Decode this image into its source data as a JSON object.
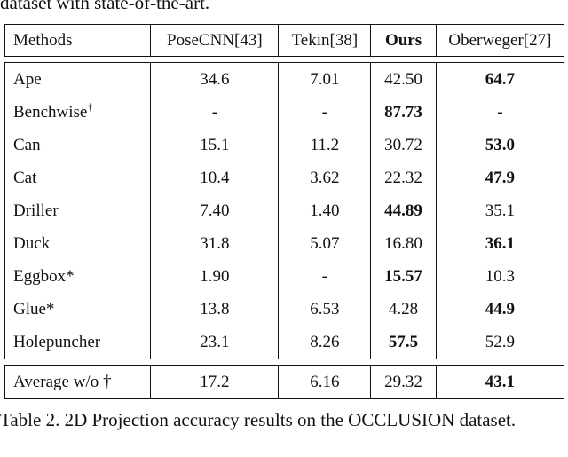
{
  "top_caption": "dataset with state-of-the-art.",
  "table": {
    "headers": [
      "Methods",
      "PoseCNN[43]",
      "Tekin[38]",
      "Ours",
      "Oberweger[27]"
    ],
    "rows": [
      {
        "cells": [
          "Ape",
          "34.6",
          "7.01",
          "42.50",
          "64.7"
        ],
        "bold": [
          4
        ]
      },
      {
        "cells": [
          "Benchwise",
          "-",
          "-",
          "87.73",
          "-"
        ],
        "sup": "†",
        "bold": [
          3
        ]
      },
      {
        "cells": [
          "Can",
          "15.1",
          "11.2",
          "30.72",
          "53.0"
        ],
        "bold": [
          4
        ]
      },
      {
        "cells": [
          "Cat",
          "10.4",
          "3.62",
          "22.32",
          "47.9"
        ],
        "bold": [
          4
        ]
      },
      {
        "cells": [
          "Driller",
          "7.40",
          "1.40",
          "44.89",
          "35.1"
        ],
        "bold": [
          3
        ]
      },
      {
        "cells": [
          "Duck",
          "31.8",
          "5.07",
          "16.80",
          "36.1"
        ],
        "bold": [
          4
        ]
      },
      {
        "cells": [
          "Eggbox*",
          "1.90",
          "-",
          "15.57",
          "10.3"
        ],
        "bold": [
          3
        ]
      },
      {
        "cells": [
          "Glue*",
          "13.8",
          "6.53",
          "4.28",
          "44.9"
        ],
        "bold": [
          4
        ]
      },
      {
        "cells": [
          "Holepuncher",
          "23.1",
          "8.26",
          "57.5",
          "52.9"
        ],
        "bold": [
          3
        ]
      }
    ],
    "average": {
      "cells": [
        "Average w/o †",
        "17.2",
        "6.16",
        "29.32",
        "43.1"
      ],
      "bold": [
        4
      ]
    }
  },
  "bottom_caption": "Table 2. 2D Projection accuracy results on the OCCLUSION dataset."
}
